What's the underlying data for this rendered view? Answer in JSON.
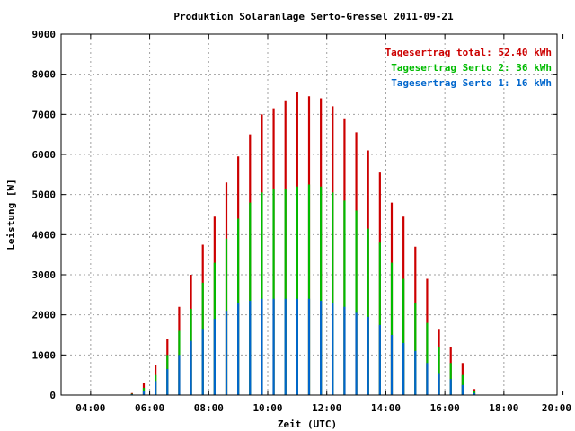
{
  "chart_data": {
    "type": "bar",
    "title": "Produktion Solaranlage Serto-Gressel 2011-09-21",
    "xlabel": "Zeit (UTC)",
    "ylabel": "Leistung [W]",
    "x_ticks": [
      "04:00",
      "06:00",
      "08:00",
      "10:00",
      "12:00",
      "14:00",
      "16:00",
      "18:00",
      "20:00"
    ],
    "y_ticks": [
      "0",
      "1000",
      "2000",
      "3000",
      "4000",
      "5000",
      "6000",
      "7000",
      "8000",
      "9000"
    ],
    "xlim_hours": [
      3.0,
      19.8
    ],
    "ylim": [
      0,
      9000
    ],
    "grid": true,
    "legend_position": "top-right",
    "legend": [
      {
        "text": "Tagesertrag total: 52.40 kWh",
        "color": "#cc0000"
      },
      {
        "text": "Tagesertrag Serto 2: 36 kWh",
        "color": "#00bb00"
      },
      {
        "text": "Tagesertrag Serto 1: 16 kWh",
        "color": "#0066cc"
      }
    ],
    "x_hours": [
      5.4,
      5.8,
      6.2,
      6.6,
      7.0,
      7.4,
      7.8,
      8.2,
      8.6,
      9.0,
      9.4,
      9.8,
      10.2,
      10.6,
      11.0,
      11.4,
      11.8,
      12.2,
      12.6,
      13.0,
      13.4,
      13.8,
      14.2,
      14.6,
      15.0,
      15.4,
      15.8,
      16.2,
      16.6,
      17.0,
      17.2
    ],
    "series": [
      {
        "name": "Tagesertrag total: 52.40 kWh",
        "color": "#cc0000",
        "values": [
          50,
          300,
          750,
          1400,
          2200,
          3000,
          3750,
          4450,
          5300,
          5950,
          6500,
          7000,
          7150,
          7350,
          7550,
          7450,
          7400,
          7200,
          6900,
          6550,
          6100,
          5550,
          4800,
          4450,
          3700,
          2900,
          1650,
          1200,
          800,
          150,
          0
        ]
      },
      {
        "name": "Tagesertrag Serto 2: 36 kWh",
        "color": "#00bb00",
        "values": [
          30,
          180,
          500,
          1000,
          1600,
          2150,
          2800,
          3300,
          3900,
          4400,
          4800,
          5050,
          5150,
          5150,
          5200,
          5250,
          5200,
          5050,
          4850,
          4600,
          4150,
          3800,
          3300,
          2900,
          2300,
          1800,
          1200,
          800,
          500,
          100,
          0
        ]
      },
      {
        "name": "Tagesertrag Serto 1: 16 kWh",
        "color": "#0066cc",
        "values": [
          20,
          100,
          350,
          650,
          1000,
          1350,
          1650,
          1900,
          2100,
          2300,
          2350,
          2400,
          2400,
          2400,
          2400,
          2400,
          2350,
          2300,
          2200,
          2050,
          1950,
          1750,
          1500,
          1300,
          1100,
          800,
          550,
          400,
          250,
          50,
          0
        ]
      }
    ]
  }
}
